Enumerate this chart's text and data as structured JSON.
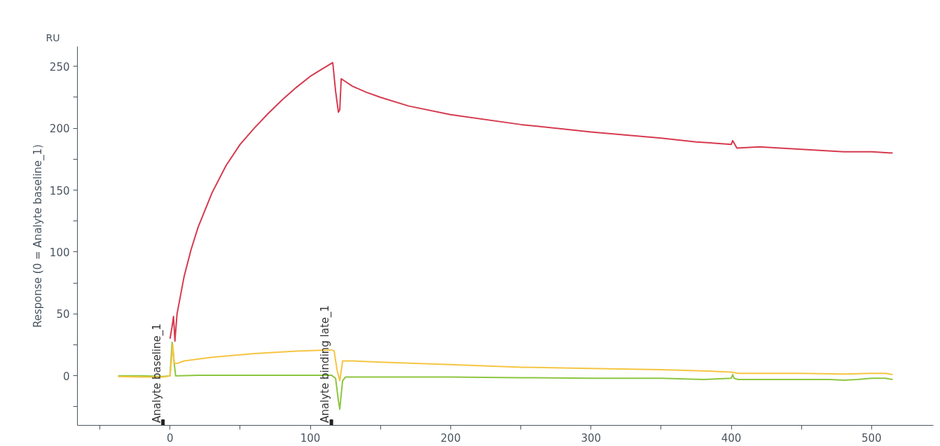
{
  "chart_data": {
    "type": "line",
    "ylabel": "Response (0 = Analyte baseline_1)",
    "annotations": [
      "RU",
      {
        "text": "Analyte baseline_1",
        "x": -5,
        "y": -38
      },
      {
        "text": "Analyte binding late_1",
        "x": 115,
        "y": -38
      }
    ],
    "xlim": [
      -66,
      544
    ],
    "ylim": [
      -40,
      266
    ],
    "xticks": [
      {
        "value": -50,
        "label": null
      },
      0,
      {
        "value": 50,
        "label": null
      },
      100,
      {
        "value": 150,
        "label": null
      },
      200,
      {
        "value": 250,
        "label": null
      },
      300,
      {
        "value": 350,
        "label": null
      },
      400,
      {
        "value": 450,
        "label": null
      },
      500
    ],
    "yticks": [
      {
        "value": -25,
        "label": null
      },
      0,
      {
        "value": 25,
        "label": null
      },
      50,
      {
        "value": 75,
        "label": null
      },
      100,
      {
        "value": 125,
        "label": null
      },
      150,
      {
        "value": 175,
        "label": null
      },
      200,
      {
        "value": 225,
        "label": null
      },
      250
    ],
    "grid": false,
    "line_style": "solid",
    "series": [
      {
        "color": "#8cc63f",
        "x": [
          -37,
          -20,
          -5,
          0,
          1.5,
          3,
          4,
          20,
          60,
          100,
          115,
          118,
          120,
          121,
          122,
          123,
          125,
          150,
          200,
          250,
          300,
          350,
          380,
          400,
          401,
          402,
          405,
          420,
          450,
          470,
          480,
          490,
          500,
          510,
          515
        ],
        "values": [
          0,
          0,
          -0.5,
          0,
          27,
          10,
          0,
          0.5,
          0.5,
          0.5,
          0.5,
          -2,
          -20,
          -27,
          -15,
          -4,
          -1,
          -1,
          -1,
          -1.5,
          -2,
          -2,
          -3,
          -2,
          1,
          -2,
          -3,
          -3,
          -3,
          -3,
          -3.5,
          -3,
          -2,
          -2,
          -3
        ]
      },
      {
        "color": "#f5c542",
        "x": [
          -37,
          -20,
          -5,
          0,
          2,
          3,
          5,
          10,
          30,
          60,
          90,
          115,
          117,
          119,
          121,
          123,
          130,
          150,
          200,
          250,
          300,
          350,
          380,
          400,
          405,
          450,
          480,
          500,
          510,
          515
        ],
        "values": [
          -0.5,
          -1,
          -1,
          0,
          25,
          10,
          10,
          12,
          15,
          18,
          20,
          21,
          20,
          5,
          -4,
          12,
          12,
          11,
          9,
          7,
          6,
          5,
          4,
          3,
          2,
          2,
          1.5,
          2,
          2,
          1
        ]
      },
      {
        "color": "#d63a4f",
        "x": [
          0,
          1.5,
          2.5,
          3.5,
          5,
          10,
          15,
          20,
          30,
          40,
          50,
          60,
          70,
          80,
          90,
          100,
          110,
          116,
          118,
          120,
          121,
          122,
          130,
          140,
          150,
          170,
          200,
          250,
          300,
          350,
          375,
          400,
          401,
          403,
          404,
          420,
          450,
          480,
          500,
          515
        ],
        "values": [
          30,
          40,
          48,
          28,
          50,
          80,
          102,
          120,
          148,
          170,
          187,
          200,
          212,
          223,
          233,
          242,
          249,
          253,
          230,
          213,
          215,
          240,
          234,
          229,
          225,
          218,
          211,
          203,
          197,
          192,
          189,
          187,
          190,
          186,
          184,
          185,
          183,
          181,
          181,
          180
        ]
      }
    ]
  }
}
